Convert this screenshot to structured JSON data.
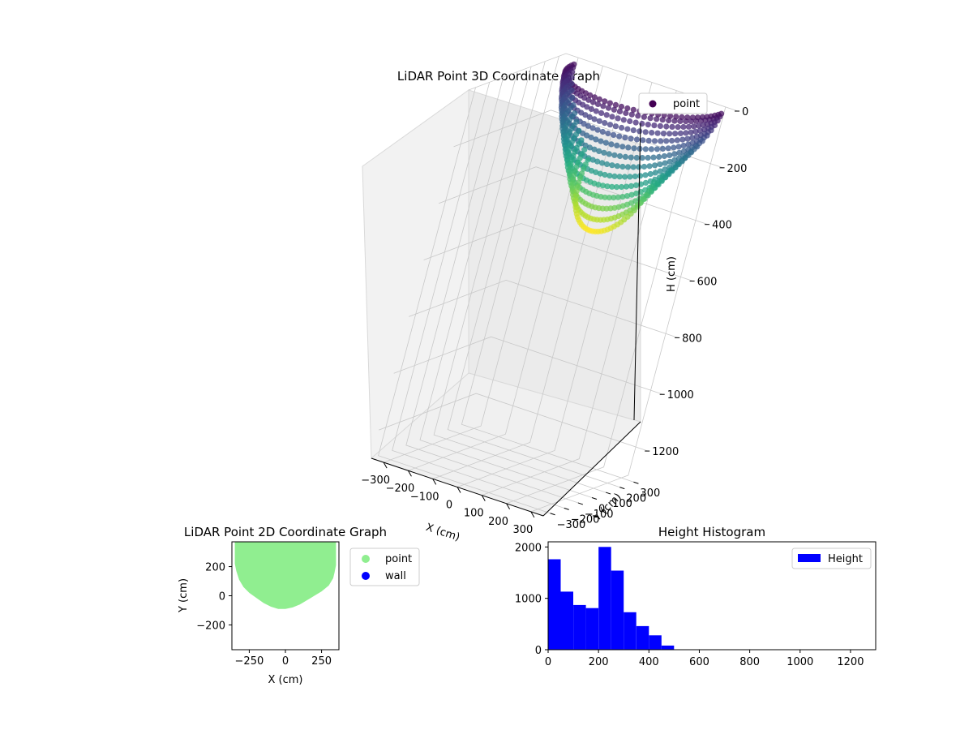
{
  "figure": {
    "background": "#ffffff",
    "panel_3d_color": "#f2f2f2",
    "grid_color": "#c8c8c8"
  },
  "chart_data": [
    {
      "type": "scatter",
      "projection": "3d",
      "title": "LiDAR Point 3D Coordinate Graph",
      "xlabel": "X (cm)",
      "ylabel": "Y (cm)",
      "zlabel": "H (cm)",
      "xlim": [
        -350,
        350
      ],
      "ylim": [
        -350,
        350
      ],
      "zlim": [
        1300,
        0
      ],
      "z_inverted": true,
      "xticks": [
        "−300",
        "−200",
        "−100",
        "0",
        "100",
        "200",
        "300"
      ],
      "yticks": [
        "−300",
        "−200",
        "−100",
        "0",
        "100",
        "200",
        "300"
      ],
      "zticks": [
        "0",
        "200",
        "400",
        "600",
        "800",
        "1000",
        "1200"
      ],
      "colormap": "viridis",
      "legend": [
        {
          "label": "point",
          "color": "#440154"
        }
      ],
      "legend_loc": "upper right",
      "grid": true,
      "description_of_points": "bowl-shaped point cloud; x from about -300 to 300, y from about -100 to 350, height from about 0 to 500, colored by height"
    },
    {
      "type": "scatter",
      "title": "LiDAR Point 2D Coordinate Graph",
      "xlabel": "X (cm)",
      "ylabel": "Y (cm)",
      "xlim": [
        -370,
        370
      ],
      "ylim": [
        -370,
        370
      ],
      "xticks": [
        -250,
        0,
        250
      ],
      "yticks": [
        -200,
        0,
        200
      ],
      "grid": false,
      "legend": [
        {
          "label": "point",
          "color": "#90ee90"
        },
        {
          "label": "wall",
          "color": "#0000ff"
        }
      ],
      "legend_loc": "outside right",
      "point_region_outline": [
        [
          -350,
          370
        ],
        [
          350,
          370
        ],
        [
          350,
          210
        ],
        [
          340,
          160
        ],
        [
          330,
          120
        ],
        [
          300,
          70
        ],
        [
          250,
          30
        ],
        [
          200,
          0
        ],
        [
          150,
          -30
        ],
        [
          100,
          -60
        ],
        [
          50,
          -80
        ],
        [
          0,
          -90
        ],
        [
          -50,
          -90
        ],
        [
          -100,
          -75
        ],
        [
          -150,
          -50
        ],
        [
          -200,
          -15
        ],
        [
          -250,
          20
        ],
        [
          -290,
          60
        ],
        [
          -320,
          110
        ],
        [
          -340,
          170
        ],
        [
          -350,
          220
        ]
      ]
    },
    {
      "type": "bar",
      "title": "Height Histogram",
      "xlabel": "",
      "ylabel": "",
      "xlim": [
        0,
        1300
      ],
      "ylim": [
        0,
        2100
      ],
      "xticks": [
        0,
        200,
        400,
        600,
        800,
        1000,
        1200
      ],
      "yticks": [
        0,
        1000,
        2000
      ],
      "bin_edges": [
        0,
        50,
        100,
        150,
        200,
        250,
        300,
        350,
        400,
        450,
        500
      ],
      "series": [
        {
          "name": "Height",
          "color": "#0000ff",
          "values": [
            1760,
            1130,
            870,
            810,
            2000,
            1540,
            730,
            460,
            280,
            80
          ]
        }
      ],
      "legend_loc": "upper right",
      "grid": false
    }
  ]
}
